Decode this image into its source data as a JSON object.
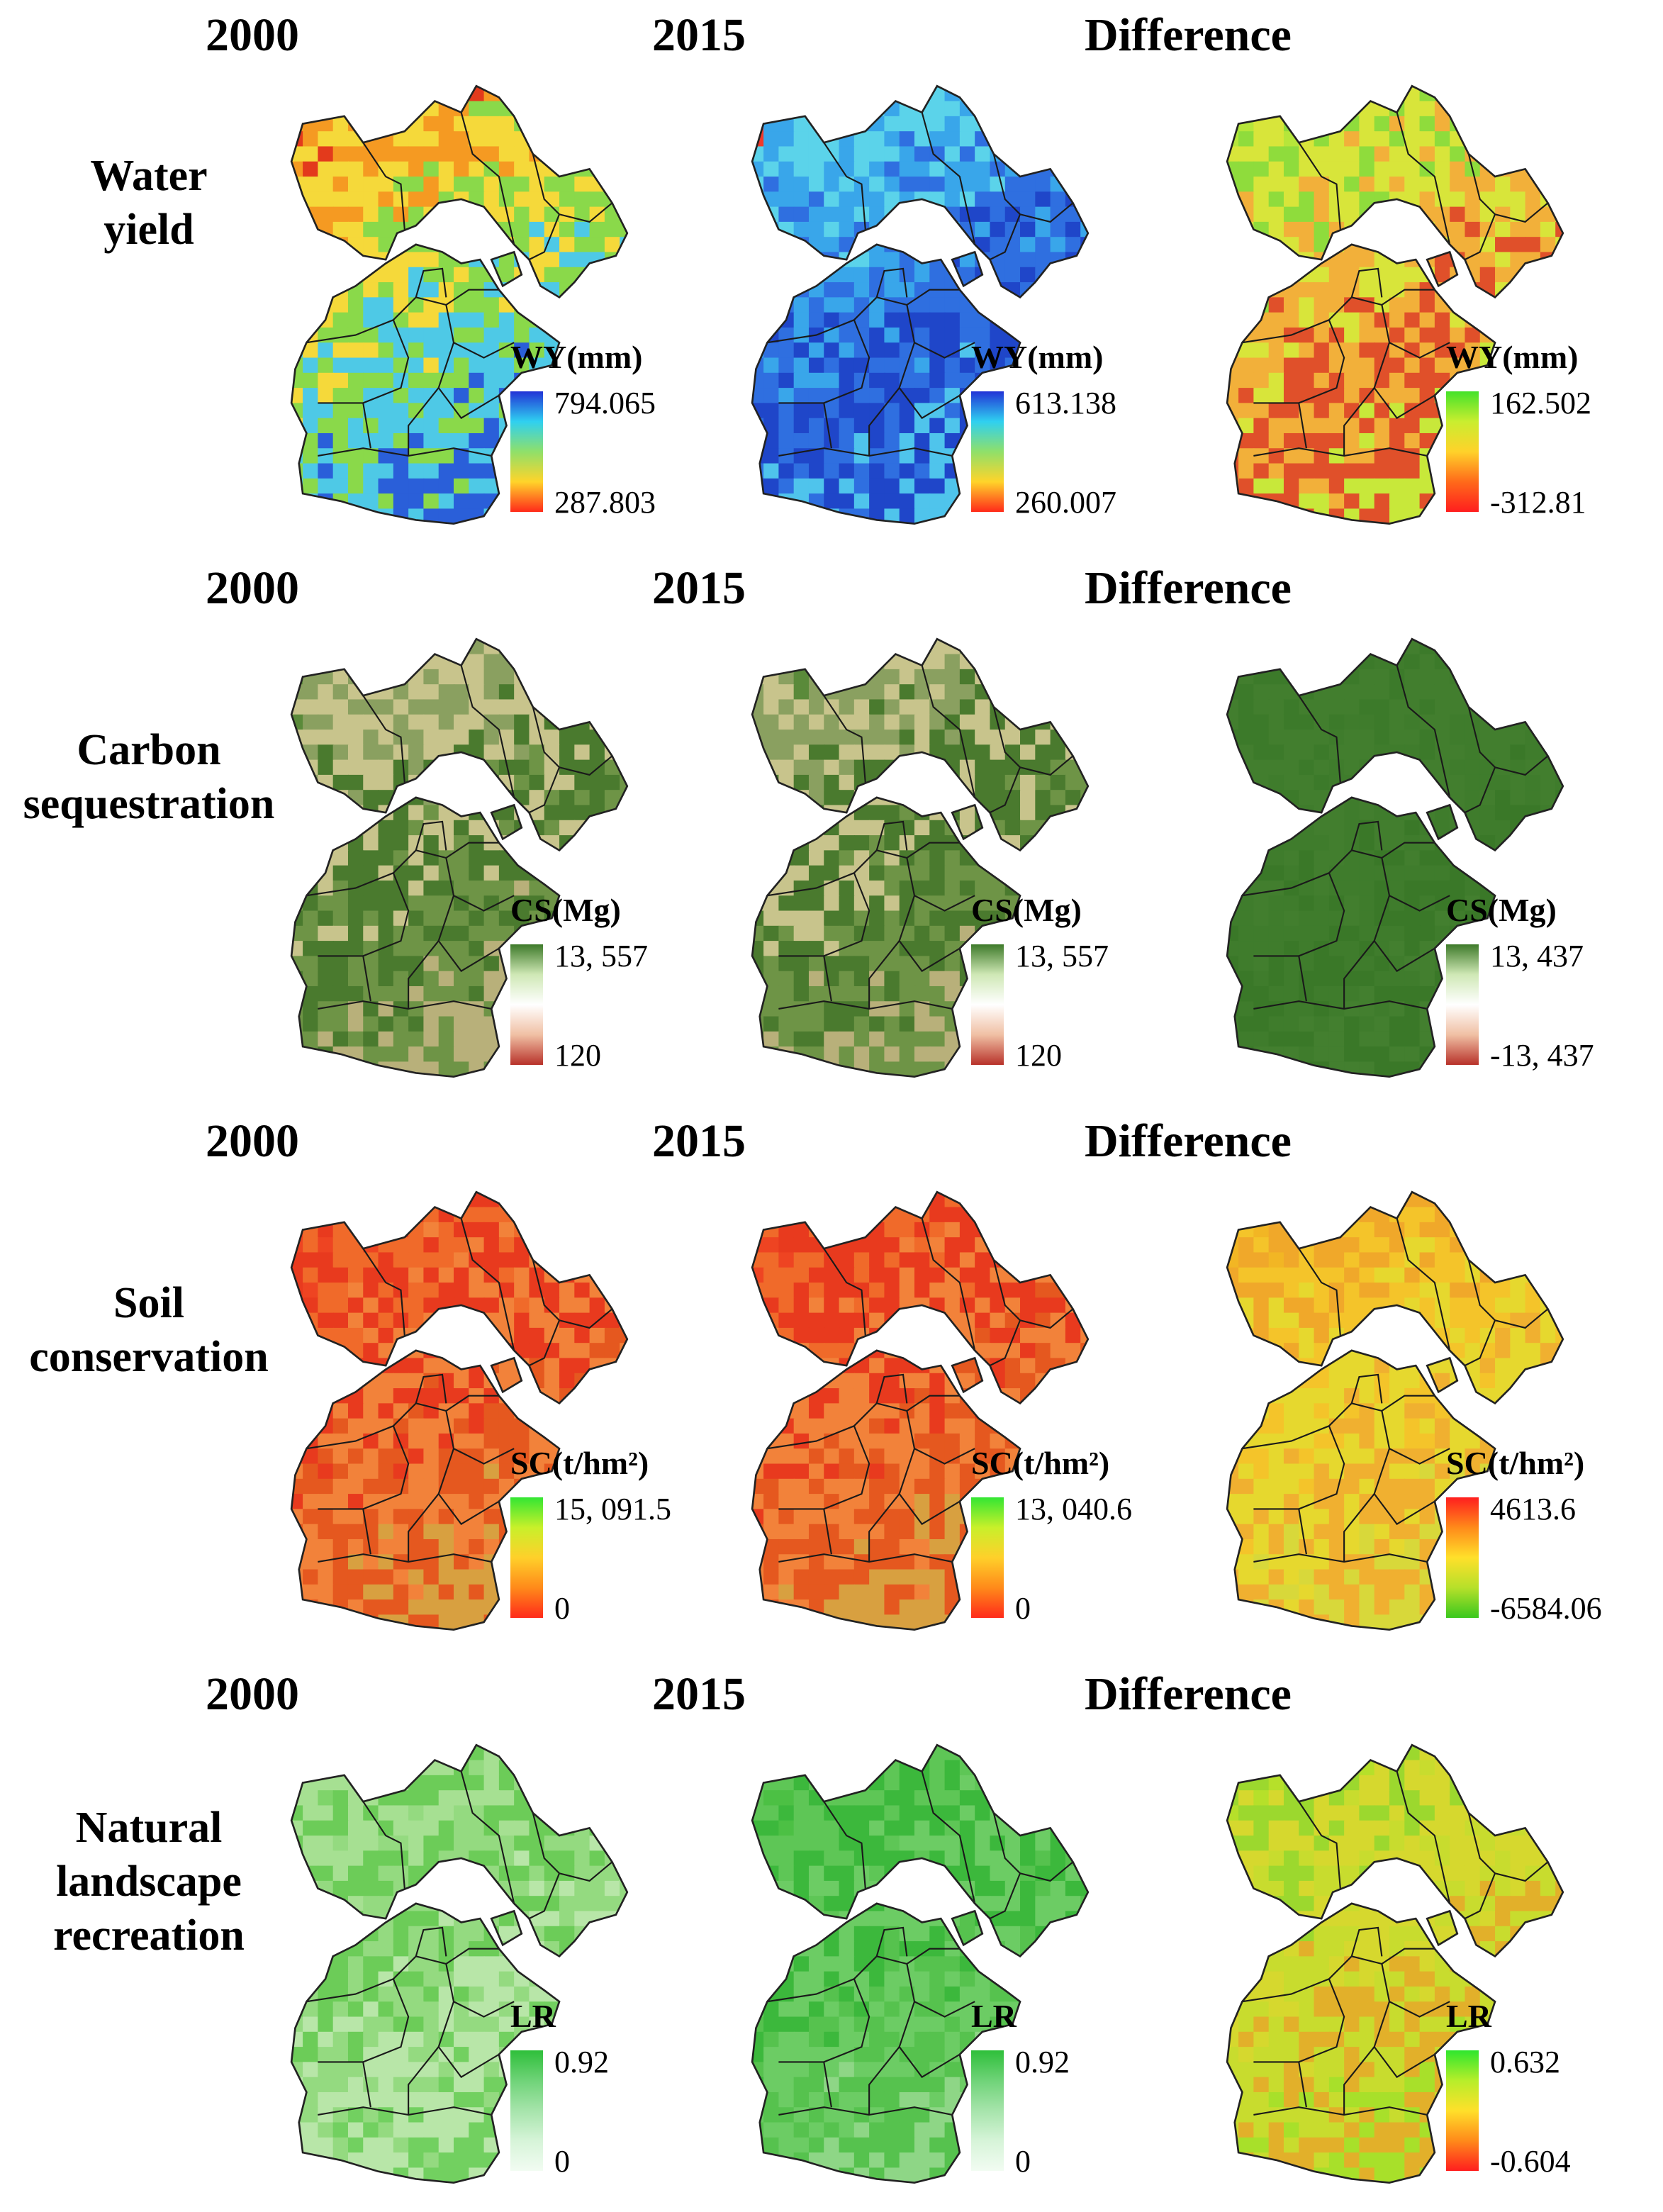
{
  "rows": [
    {
      "label_lines": [
        "Water",
        "yield"
      ],
      "panels": [
        {
          "title": "2000",
          "legend_title": "WY(mm)",
          "max": "794.065",
          "min": "287.803",
          "palette": [
            "#e33a1c",
            "#f59a22",
            "#f5d93a",
            "#8ad94a",
            "#4ec9e6",
            "#2a5fd9"
          ],
          "bar": [
            "#2233d6",
            "#2fd0f0",
            "#8fe06a",
            "#ffd42a",
            "#ff2a1a"
          ]
        },
        {
          "title": "2015",
          "legend_title": "WY(mm)",
          "max": "613.138",
          "min": "260.007",
          "palette": [
            "#f2382a",
            "#5bd3ea",
            "#39a6ea",
            "#2f6fe0",
            "#1f46c9",
            "#4fc4ec"
          ],
          "bar": [
            "#2233d6",
            "#2fd0f0",
            "#8fe06a",
            "#ffd42a",
            "#ff2a1a"
          ]
        },
        {
          "title": "Difference",
          "legend_title": "WY(mm)",
          "max": "162.502",
          "min": "-312.81",
          "palette": [
            "#b6e63a",
            "#8fdc3c",
            "#d8e53a",
            "#f2b03a",
            "#e0502a",
            "#c8e83a"
          ],
          "bar": [
            "#44e22a",
            "#c9ee2f",
            "#ffd22a",
            "#ff6a1a",
            "#ff1e1e"
          ]
        }
      ]
    },
    {
      "label_lines": [
        "Carbon",
        "sequestration"
      ],
      "panels": [
        {
          "title": "2000",
          "legend_title": "CS(Mg)",
          "max": "13, 557",
          "min": "120",
          "palette": [
            "#5a8a3a",
            "#8aa060",
            "#c8c48c",
            "#4a7a2e",
            "#6e9446",
            "#b8b07a"
          ],
          "bar": [
            "#3e7a2a",
            "#cfe8b5",
            "#ffffff",
            "#f0c0a4",
            "#b8322a"
          ]
        },
        {
          "title": "2015",
          "legend_title": "CS(Mg)",
          "max": "13, 557",
          "min": "120",
          "palette": [
            "#5a8a3a",
            "#8aa060",
            "#c8c48c",
            "#4a7a2e",
            "#6e9446",
            "#b8b07a"
          ],
          "bar": [
            "#3e7a2a",
            "#cfe8b5",
            "#ffffff",
            "#f0c0a4",
            "#b8322a"
          ]
        },
        {
          "title": "Difference",
          "legend_title": "CS(Mg)",
          "max": "13, 437",
          "min": "-13, 437",
          "palette": [
            "#3f7c2c",
            "#3c7a2a",
            "#427e2e",
            "#3f7c2c",
            "#3a7828",
            "#437f2f"
          ],
          "bar": [
            "#3e7a2a",
            "#cfe8b5",
            "#ffffff",
            "#f0c0a4",
            "#b8322a"
          ]
        }
      ]
    },
    {
      "label_lines": [
        "Soil",
        "conservation"
      ],
      "panels": [
        {
          "title": "2000",
          "legend_title": "SC(t/hm²)",
          "max": "15, 091.5",
          "min": "0",
          "palette": [
            "#ee4422",
            "#f06a2a",
            "#e83a1e",
            "#f2823a",
            "#e5581f",
            "#d8a040"
          ],
          "bar": [
            "#33e633",
            "#c8f02a",
            "#ffd02a",
            "#ff8a1a",
            "#ff2a1a"
          ]
        },
        {
          "title": "2015",
          "legend_title": "SC(t/hm²)",
          "max": "13, 040.6",
          "min": "0",
          "palette": [
            "#ee4422",
            "#f06a2a",
            "#e83a1e",
            "#f2823a",
            "#e5581f",
            "#d8a040"
          ],
          "bar": [
            "#33e633",
            "#c8f02a",
            "#ffd02a",
            "#ff8a1a",
            "#ff2a1a"
          ]
        },
        {
          "title": "Difference",
          "legend_title": "SC(t/hm²)",
          "max": "4613.6",
          "min": "-6584.06",
          "palette": [
            "#f2b624",
            "#f0a82a",
            "#f4c42a",
            "#e6d82e",
            "#f0b030",
            "#d8d83a"
          ],
          "bar": [
            "#ff1e1e",
            "#ff8a1a",
            "#ffe02a",
            "#b6e02a",
            "#3ac81e"
          ]
        }
      ]
    },
    {
      "label_lines": [
        "Natural",
        "landscape",
        "recreation"
      ],
      "panels": [
        {
          "title": "2000",
          "legend_title": "LR",
          "max": "0.92",
          "min": "0",
          "palette": [
            "#7fd46a",
            "#a6e092",
            "#6ccc58",
            "#94da80",
            "#b8e6a8",
            "#72d060"
          ],
          "bar": [
            "#2ebf3a",
            "#6fd378",
            "#a6e4ab",
            "#d6f4d8",
            "#f2fcf2"
          ]
        },
        {
          "title": "2015",
          "legend_title": "LR",
          "max": "0.92",
          "min": "0",
          "palette": [
            "#4cc044",
            "#5ec656",
            "#3cb83c",
            "#6ccc64",
            "#56c24e",
            "#8ed686"
          ],
          "bar": [
            "#2ebf3a",
            "#6fd378",
            "#a6e4ab",
            "#d6f4d8",
            "#f2fcf2"
          ]
        },
        {
          "title": "Difference",
          "legend_title": "LR",
          "max": "0.632",
          "min": "-0.604",
          "palette": [
            "#b6e02a",
            "#9cd82e",
            "#d6d82e",
            "#c8dc2e",
            "#e2b02a",
            "#a8e02a"
          ],
          "bar": [
            "#2ee62e",
            "#b6ee2a",
            "#ffe02a",
            "#ff8a1a",
            "#ff1e1e"
          ]
        }
      ]
    }
  ]
}
